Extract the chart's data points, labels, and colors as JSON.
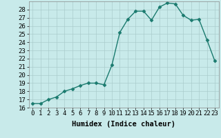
{
  "x": [
    0,
    1,
    2,
    3,
    4,
    5,
    6,
    7,
    8,
    9,
    10,
    11,
    12,
    13,
    14,
    15,
    16,
    17,
    18,
    19,
    20,
    21,
    22,
    23
  ],
  "y": [
    16.5,
    16.5,
    17.0,
    17.3,
    18.0,
    18.3,
    18.7,
    19.0,
    19.0,
    18.8,
    21.2,
    25.2,
    26.8,
    27.8,
    27.8,
    26.7,
    28.3,
    28.8,
    28.7,
    27.3,
    26.7,
    26.8,
    24.3,
    21.7
  ],
  "line_color": "#1a7a6e",
  "marker": "D",
  "marker_size": 2.5,
  "bg_color": "#c8eaea",
  "grid_color": "#aacccc",
  "xlabel": "Humidex (Indice chaleur)",
  "xlim": [
    -0.5,
    23.5
  ],
  "ylim": [
    16,
    29
  ],
  "yticks": [
    16,
    17,
    18,
    19,
    20,
    21,
    22,
    23,
    24,
    25,
    26,
    27,
    28
  ],
  "xticks": [
    0,
    1,
    2,
    3,
    4,
    5,
    6,
    7,
    8,
    9,
    10,
    11,
    12,
    13,
    14,
    15,
    16,
    17,
    18,
    19,
    20,
    21,
    22,
    23
  ],
  "xtick_labels": [
    "0",
    "1",
    "2",
    "3",
    "4",
    "5",
    "6",
    "7",
    "8",
    "9",
    "10",
    "11",
    "12",
    "13",
    "14",
    "15",
    "16",
    "17",
    "18",
    "19",
    "20",
    "21",
    "22",
    "23"
  ],
  "tick_fontsize": 6.5,
  "label_fontsize": 7.5
}
